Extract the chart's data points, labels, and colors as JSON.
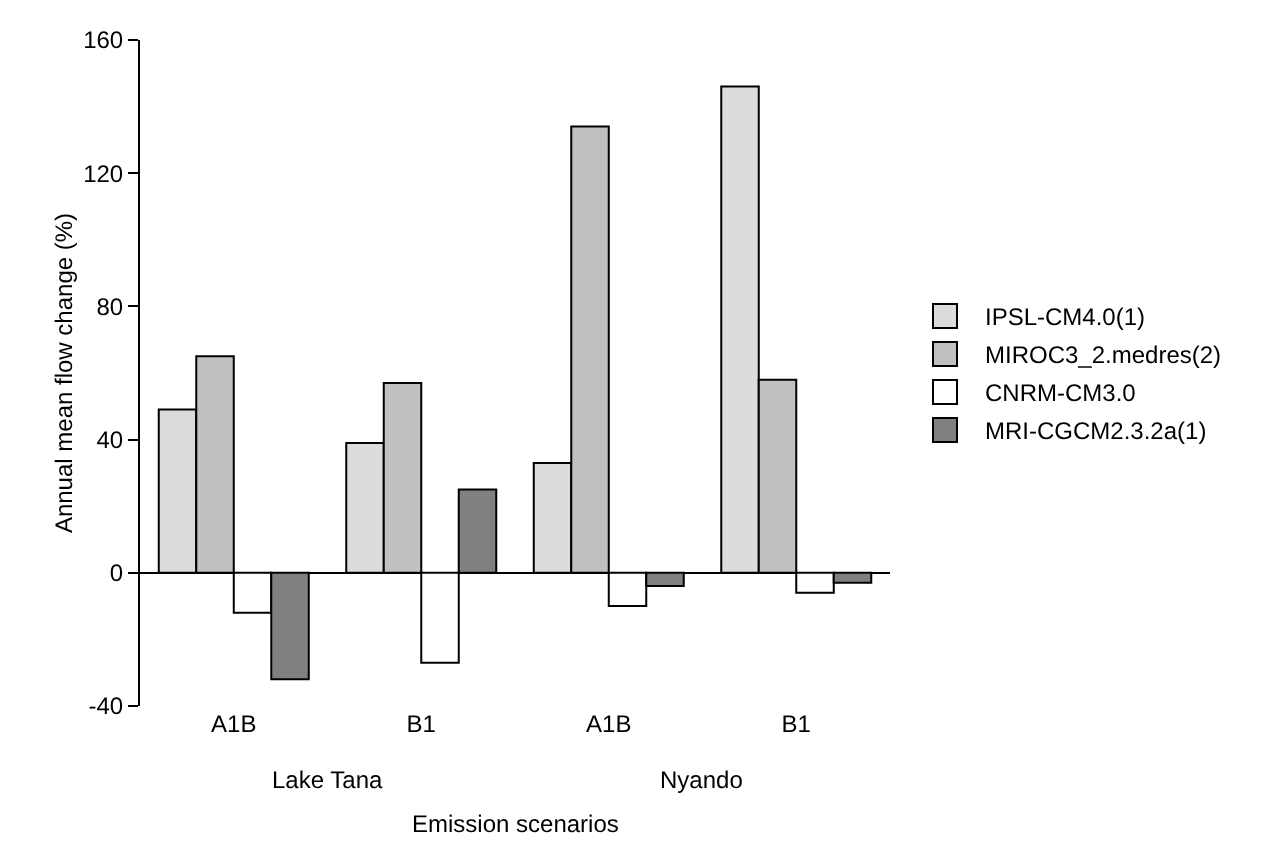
{
  "chart_data": {
    "type": "bar",
    "xlabel": "Emission scenarios",
    "ylabel": "Annual mean flow change (%)",
    "categories": [
      "A1B",
      "B1",
      "A1B",
      "B1"
    ],
    "annotations": [
      "Lake Tana",
      "Nyando"
    ],
    "series": [
      {
        "name": "IPSL-CM4.0(1)",
        "color": "#dcdcdc",
        "values": [
          49,
          39,
          33,
          146
        ]
      },
      {
        "name": "MIROC3_2.medres(2)",
        "color": "#c0c0c0",
        "values": [
          65,
          57,
          134,
          58
        ]
      },
      {
        "name": "CNRM-CM3.0",
        "color": "#ffffff",
        "values": [
          -12,
          -27,
          -10,
          -6
        ]
      },
      {
        "name": "MRI-CGCM2.3.2a(1)",
        "color": "#808080",
        "values": [
          -32,
          25,
          -4,
          -3
        ]
      }
    ],
    "ylim": [
      -40,
      160
    ],
    "yticks": [
      -40,
      0,
      40,
      80,
      120,
      160
    ],
    "legend": "right"
  }
}
